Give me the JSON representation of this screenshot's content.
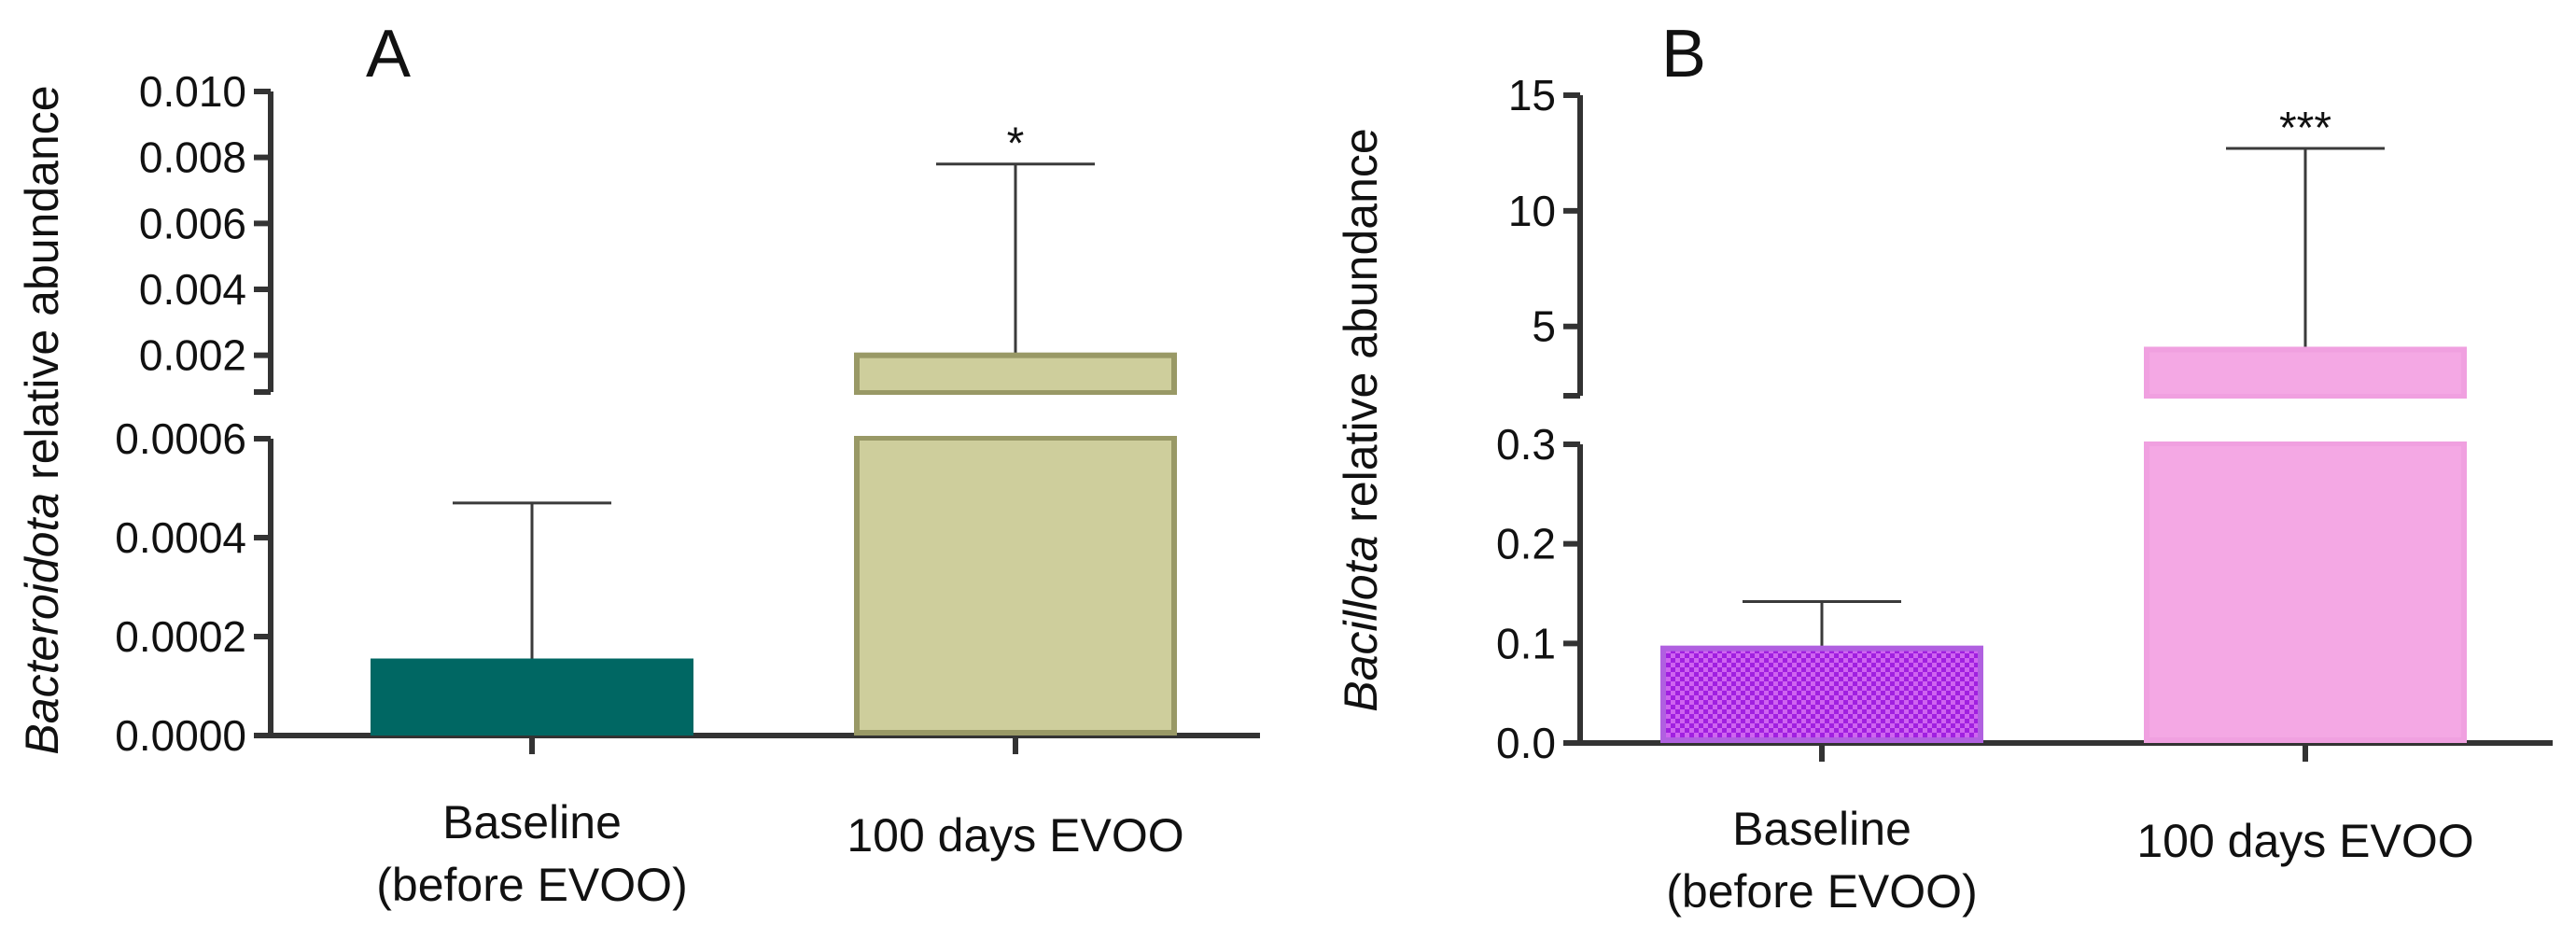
{
  "chart_data": [
    {
      "type": "bar",
      "panel": "A",
      "ylabel_italic": "Bacteroidota",
      "ylabel_rest": " relative abundance",
      "axis_break": true,
      "upper_segment": {
        "ylim": [
          0.001,
          0.01
        ],
        "ticks": [
          "0.010",
          "0.008",
          "0.006",
          "0.004",
          "0.002"
        ]
      },
      "lower_segment": {
        "ylim": [
          0.0,
          0.0006
        ],
        "ticks": [
          "0.0006",
          "0.0004",
          "0.0002",
          "0.0000"
        ]
      },
      "categories": [
        {
          "line1": "Baseline",
          "line2": "(before EVOO)"
        },
        {
          "line1": "100 days EVOO",
          "line2": ""
        }
      ],
      "values": [
        0.00015,
        0.002
      ],
      "error_upper": [
        0.00047,
        0.0078
      ],
      "significance": [
        "",
        "*"
      ],
      "colors": {
        "fill": [
          "#006763",
          "#cece9c"
        ],
        "stroke": [
          "#006763",
          "#999966"
        ]
      },
      "patterns": [
        "none",
        "none"
      ]
    },
    {
      "type": "bar",
      "panel": "B",
      "ylabel_italic": "Bacillota",
      "ylabel_rest": " relative abundance",
      "axis_break": true,
      "upper_segment": {
        "ylim": [
          2.0,
          15.0
        ],
        "ticks": [
          "15",
          "10",
          "5"
        ]
      },
      "lower_segment": {
        "ylim": [
          0.0,
          0.3
        ],
        "ticks": [
          "0.3",
          "0.2",
          "0.1",
          "0.0"
        ]
      },
      "categories": [
        {
          "line1": "Baseline",
          "line2": "(before EVOO)"
        },
        {
          "line1": "100 days EVOO",
          "line2": ""
        }
      ],
      "values": [
        0.095,
        4.0
      ],
      "error_upper": [
        0.142,
        12.7
      ],
      "significance": [
        "",
        "***"
      ],
      "colors": {
        "fill": [
          "#a020e0",
          "#f4a8e4"
        ],
        "stroke": [
          "#b060e0",
          "#f0a0e0"
        ]
      },
      "patterns": [
        "checker",
        "none"
      ]
    }
  ]
}
